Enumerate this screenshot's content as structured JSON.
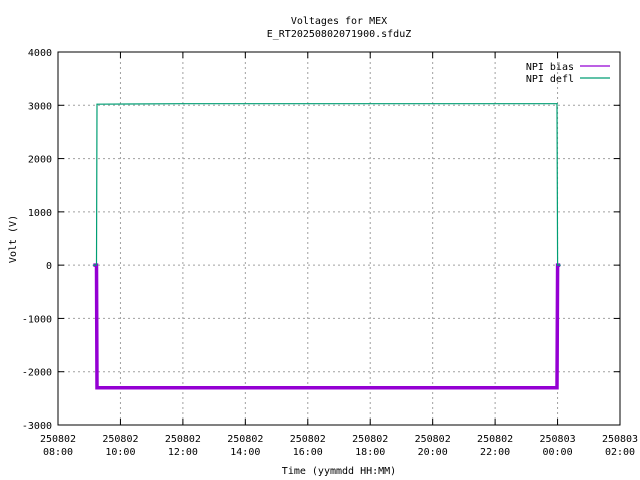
{
  "chart_data": {
    "type": "line",
    "title": "Voltages for MEX",
    "subtitle": "E_RT20250802071900.sfduZ",
    "xlabel": "Time (yymmdd HH:MM)",
    "ylabel": "Volt (V)",
    "xlim": [
      "2025-08-02 08:00",
      "2025-08-03 02:00"
    ],
    "ylim": [
      -3000,
      4000
    ],
    "grid": true,
    "legend_position": "top-right",
    "x_ticks": [
      {
        "date": "250802",
        "time": "08:00"
      },
      {
        "date": "250802",
        "time": "10:00"
      },
      {
        "date": "250802",
        "time": "12:00"
      },
      {
        "date": "250802",
        "time": "14:00"
      },
      {
        "date": "250802",
        "time": "16:00"
      },
      {
        "date": "250802",
        "time": "18:00"
      },
      {
        "date": "250802",
        "time": "20:00"
      },
      {
        "date": "250802",
        "time": "22:00"
      },
      {
        "date": "250803",
        "time": "00:00"
      },
      {
        "date": "250803",
        "time": "02:00"
      }
    ],
    "y_ticks": [
      4000,
      3000,
      2000,
      1000,
      0,
      -1000,
      -2000,
      -3000
    ],
    "series": [
      {
        "name": "NPI bias",
        "color": "#9400d3",
        "x": [
          "2025-08-02 09:08",
          "2025-08-02 09:14",
          "2025-08-02 09:15",
          "2025-08-02 12:00",
          "2025-08-02 16:00",
          "2025-08-02 20:00",
          "2025-08-02 23:59",
          "2025-08-03 00:00",
          "2025-08-03 00:05"
        ],
        "y": [
          0,
          0,
          -2300,
          -2300,
          -2300,
          -2300,
          -2300,
          0,
          0
        ]
      },
      {
        "name": "NPI defl",
        "color": "#009e73",
        "x": [
          "2025-08-02 09:08",
          "2025-08-02 09:14",
          "2025-08-02 09:15",
          "2025-08-02 12:00",
          "2025-08-02 16:00",
          "2025-08-02 20:00",
          "2025-08-02 23:59",
          "2025-08-03 00:00",
          "2025-08-03 00:05"
        ],
        "y": [
          0,
          0,
          3020,
          3030,
          3030,
          3030,
          3030,
          0,
          0
        ]
      }
    ]
  }
}
